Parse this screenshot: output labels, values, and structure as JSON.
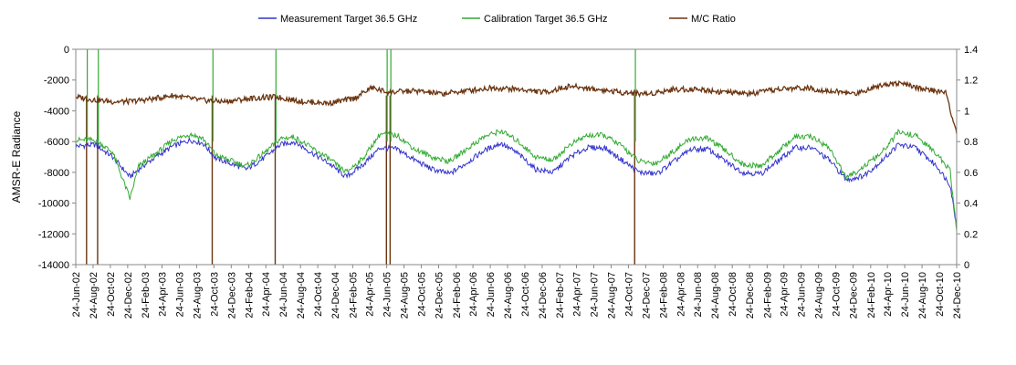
{
  "chart_data": {
    "type": "line",
    "title": "",
    "y_left": {
      "label": "AMSR-E Radiance",
      "range": [
        -14000,
        0
      ],
      "ticks": [
        "0",
        "-2000",
        "-4000",
        "-6000",
        "-8000",
        "-10000",
        "-12000",
        "-14000"
      ]
    },
    "y_right": {
      "label": "",
      "range": [
        0,
        1.4
      ],
      "ticks": [
        "1.4",
        "1.2",
        "1",
        "0.8",
        "0.6",
        "0.4",
        "0.2",
        "0"
      ]
    },
    "x_range": [
      "2002-06-24",
      "2010-12-24"
    ],
    "x_tick_labels": [
      "24-Jun-02",
      "24-Aug-02",
      "24-Oct-02",
      "24-Dec-02",
      "24-Feb-03",
      "24-Apr-03",
      "24-Jun-03",
      "24-Aug-03",
      "24-Oct-03",
      "24-Dec-03",
      "24-Feb-04",
      "24-Apr-04",
      "24-Jun-04",
      "24-Aug-04",
      "24-Oct-04",
      "24-Dec-04",
      "24-Feb-05",
      "24-Apr-05",
      "24-Jun-05",
      "24-Aug-05",
      "24-Oct-05",
      "24-Dec-05",
      "24-Feb-06",
      "24-Apr-06",
      "24-Jun-06",
      "24-Aug-06",
      "24-Oct-06",
      "24-Dec-06",
      "24-Feb-07",
      "24-Apr-07",
      "24-Jun-07",
      "24-Aug-07",
      "24-Oct-07",
      "24-Dec-07",
      "24-Feb-08",
      "24-Apr-08",
      "24-Jun-08",
      "24-Aug-08",
      "24-Oct-08",
      "24-Dec-08",
      "24-Feb-09",
      "24-Apr-09",
      "24-Jun-09",
      "24-Aug-09",
      "24-Oct-09",
      "24-Dec-09",
      "24-Feb-10",
      "24-Apr-10",
      "24-Jun-10",
      "24-Aug-10",
      "24-Oct-10",
      "24-Dec-10"
    ],
    "grid": false,
    "legend_position": "top",
    "series": [
      {
        "name": "Measurement Target 36.5 GHz",
        "axis": "left",
        "color": "#3333cc",
        "points": [
          [
            "2002-06-24",
            -6300
          ],
          [
            "2002-09-01",
            -6200
          ],
          [
            "2002-11-01",
            -7000
          ],
          [
            "2003-01-01",
            -8300
          ],
          [
            "2003-02-01",
            -7800
          ],
          [
            "2003-04-01",
            -7000
          ],
          [
            "2003-06-01",
            -6300
          ],
          [
            "2003-08-01",
            -5900
          ],
          [
            "2003-09-15",
            -6100
          ],
          [
            "2003-11-01",
            -7100
          ],
          [
            "2004-01-01",
            -7500
          ],
          [
            "2004-02-15",
            -7800
          ],
          [
            "2004-04-15",
            -7100
          ],
          [
            "2004-06-15",
            -6200
          ],
          [
            "2004-08-01",
            -6000
          ],
          [
            "2004-10-01",
            -6700
          ],
          [
            "2004-12-01",
            -7400
          ],
          [
            "2005-02-01",
            -8300
          ],
          [
            "2005-04-01",
            -7500
          ],
          [
            "2005-06-01",
            -6400
          ],
          [
            "2005-08-01",
            -6500
          ],
          [
            "2005-10-01",
            -7200
          ],
          [
            "2005-12-01",
            -7800
          ],
          [
            "2006-02-01",
            -8100
          ],
          [
            "2006-04-01",
            -7400
          ],
          [
            "2006-06-01",
            -6600
          ],
          [
            "2006-08-01",
            -6100
          ],
          [
            "2006-10-01",
            -6800
          ],
          [
            "2006-12-01",
            -7800
          ],
          [
            "2007-02-01",
            -8000
          ],
          [
            "2007-04-01",
            -7000
          ],
          [
            "2007-06-01",
            -6400
          ],
          [
            "2007-08-01",
            -6400
          ],
          [
            "2007-10-01",
            -7200
          ],
          [
            "2007-12-01",
            -8000
          ],
          [
            "2008-02-01",
            -8100
          ],
          [
            "2008-04-01",
            -7300
          ],
          [
            "2008-06-01",
            -6500
          ],
          [
            "2008-08-01",
            -6500
          ],
          [
            "2008-10-01",
            -7300
          ],
          [
            "2008-12-01",
            -8000
          ],
          [
            "2009-02-01",
            -8100
          ],
          [
            "2009-04-01",
            -7300
          ],
          [
            "2009-06-01",
            -6400
          ],
          [
            "2009-08-01",
            -6400
          ],
          [
            "2009-10-01",
            -7200
          ],
          [
            "2009-12-01",
            -8500
          ],
          [
            "2010-02-01",
            -8200
          ],
          [
            "2010-04-01",
            -7300
          ],
          [
            "2010-06-01",
            -6200
          ],
          [
            "2010-08-01",
            -6400
          ],
          [
            "2010-10-15",
            -7600
          ],
          [
            "2010-12-01",
            -8800
          ],
          [
            "2010-12-24",
            -11500
          ]
        ]
      },
      {
        "name": "Calibration Target 36.5 GHz",
        "axis": "left",
        "color": "#33aa33",
        "points": [
          [
            "2002-06-24",
            -5900
          ],
          [
            "2002-09-01",
            -5900
          ],
          [
            "2002-11-01",
            -6700
          ],
          [
            "2003-01-01",
            -9700
          ],
          [
            "2003-02-01",
            -7600
          ],
          [
            "2003-04-01",
            -6800
          ],
          [
            "2003-06-01",
            -5900
          ],
          [
            "2003-08-01",
            -5500
          ],
          [
            "2003-09-15",
            -5800
          ],
          [
            "2003-11-01",
            -6900
          ],
          [
            "2004-01-01",
            -7300
          ],
          [
            "2004-02-15",
            -7600
          ],
          [
            "2004-04-15",
            -6800
          ],
          [
            "2004-06-15",
            -5800
          ],
          [
            "2004-08-01",
            -5700
          ],
          [
            "2004-10-01",
            -6400
          ],
          [
            "2004-12-01",
            -7100
          ],
          [
            "2005-02-01",
            -8000
          ],
          [
            "2005-04-01",
            -7100
          ],
          [
            "2005-06-01",
            -5500
          ],
          [
            "2005-08-01",
            -5600
          ],
          [
            "2005-10-01",
            -6500
          ],
          [
            "2005-12-01",
            -7000
          ],
          [
            "2006-02-01",
            -7300
          ],
          [
            "2006-04-01",
            -6500
          ],
          [
            "2006-06-01",
            -5700
          ],
          [
            "2006-08-01",
            -5300
          ],
          [
            "2006-10-01",
            -6000
          ],
          [
            "2006-12-01",
            -7000
          ],
          [
            "2007-02-01",
            -7200
          ],
          [
            "2007-04-01",
            -6200
          ],
          [
            "2007-06-01",
            -5600
          ],
          [
            "2007-08-01",
            -5600
          ],
          [
            "2007-10-01",
            -6300
          ],
          [
            "2007-12-01",
            -7300
          ],
          [
            "2008-02-01",
            -7400
          ],
          [
            "2008-04-01",
            -6600
          ],
          [
            "2008-06-01",
            -5800
          ],
          [
            "2008-08-01",
            -5800
          ],
          [
            "2008-10-01",
            -6600
          ],
          [
            "2008-12-01",
            -7500
          ],
          [
            "2009-02-01",
            -7600
          ],
          [
            "2009-04-01",
            -6700
          ],
          [
            "2009-06-01",
            -5700
          ],
          [
            "2009-08-01",
            -5700
          ],
          [
            "2009-10-01",
            -6400
          ],
          [
            "2009-12-01",
            -8400
          ],
          [
            "2010-02-01",
            -7600
          ],
          [
            "2010-04-01",
            -6800
          ],
          [
            "2010-06-01",
            -5400
          ],
          [
            "2010-08-01",
            -5600
          ],
          [
            "2010-10-15",
            -6800
          ],
          [
            "2010-12-01",
            -7900
          ],
          [
            "2010-12-24",
            -11800
          ]
        ]
      },
      {
        "name": "M/C Ratio",
        "axis": "right",
        "color": "#6b3510",
        "points": [
          [
            "2002-06-24",
            1.09
          ],
          [
            "2002-09-01",
            1.07
          ],
          [
            "2002-11-01",
            1.06
          ],
          [
            "2003-01-01",
            1.06
          ],
          [
            "2003-04-01",
            1.08
          ],
          [
            "2003-06-01",
            1.1
          ],
          [
            "2003-09-01",
            1.07
          ],
          [
            "2003-12-01",
            1.06
          ],
          [
            "2004-03-01",
            1.08
          ],
          [
            "2004-06-01",
            1.09
          ],
          [
            "2004-09-01",
            1.06
          ],
          [
            "2004-12-01",
            1.05
          ],
          [
            "2005-03-01",
            1.08
          ],
          [
            "2005-05-01",
            1.15
          ],
          [
            "2005-07-01",
            1.12
          ],
          [
            "2005-10-01",
            1.13
          ],
          [
            "2006-01-01",
            1.11
          ],
          [
            "2006-04-01",
            1.13
          ],
          [
            "2006-07-01",
            1.15
          ],
          [
            "2006-10-01",
            1.14
          ],
          [
            "2007-01-01",
            1.12
          ],
          [
            "2007-04-01",
            1.16
          ],
          [
            "2007-07-01",
            1.14
          ],
          [
            "2007-10-01",
            1.12
          ],
          [
            "2008-01-01",
            1.11
          ],
          [
            "2008-04-01",
            1.14
          ],
          [
            "2008-07-01",
            1.14
          ],
          [
            "2008-10-01",
            1.12
          ],
          [
            "2009-01-01",
            1.11
          ],
          [
            "2009-04-01",
            1.14
          ],
          [
            "2009-07-01",
            1.15
          ],
          [
            "2009-10-01",
            1.13
          ],
          [
            "2010-01-01",
            1.11
          ],
          [
            "2010-04-01",
            1.17
          ],
          [
            "2010-06-01",
            1.18
          ],
          [
            "2010-09-01",
            1.14
          ],
          [
            "2010-11-15",
            1.12
          ],
          [
            "2010-12-24",
            0.85
          ]
        ]
      }
    ],
    "annotations": [
      {
        "description": "dropout spikes",
        "dates": [
          "2002-08-01",
          "2002-09-09",
          "2003-10-18",
          "2004-05-27",
          "2005-06-23",
          "2005-07-06",
          "2007-11-15"
        ]
      }
    ]
  }
}
